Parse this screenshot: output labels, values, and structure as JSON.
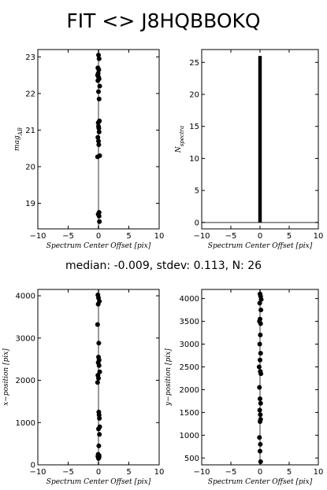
{
  "title": "FIT <> J8HQBBOKQ",
  "summary": "median: -0.009, stdev: 0.113, N: 26",
  "chart_data": [
    {
      "type": "scatter",
      "xlabel": "Spectrum Center Offset [pix]",
      "ylabel": "mag_AB",
      "xlim": [
        -10,
        10
      ],
      "ylim": [
        18.3,
        23.2
      ],
      "xticks": [
        -10,
        -5,
        0,
        5,
        10
      ],
      "xtick_labels": [
        "−10",
        "−5",
        "0",
        "5",
        "10"
      ],
      "yticks": [
        19,
        20,
        21,
        22,
        23
      ],
      "ytick_labels": [
        "19",
        "20",
        "21",
        "22",
        "23"
      ],
      "vline": 0,
      "x": [
        0.0,
        0.1,
        -0.1,
        0.05,
        -0.05,
        -0.15,
        0.0,
        0.1,
        -0.1,
        0.2,
        0.0,
        0.1,
        -0.05,
        0.15,
        0.0,
        0.05,
        0.1,
        -0.1,
        0.0,
        0.05,
        0.2,
        -0.15,
        0.1,
        -0.05,
        0.1,
        0.15
      ],
      "y": [
        23.05,
        22.95,
        22.7,
        22.65,
        22.55,
        22.5,
        22.45,
        22.4,
        22.35,
        22.2,
        22.05,
        21.85,
        21.2,
        21.25,
        21.1,
        21.05,
        20.95,
        20.8,
        20.7,
        20.6,
        20.3,
        20.27,
        18.75,
        18.7,
        18.65,
        18.5
      ]
    },
    {
      "type": "bar",
      "xlabel": "Spectrum Center Offset [pix]",
      "ylabel": "N_spectra",
      "xlim": [
        -10,
        10
      ],
      "ylim": [
        -1,
        27
      ],
      "xticks": [
        -10,
        -5,
        0,
        5,
        10
      ],
      "xtick_labels": [
        "−10",
        "−5",
        "0",
        "5",
        "10"
      ],
      "yticks": [
        0,
        5,
        10,
        15,
        20,
        25
      ],
      "ytick_labels": [
        "0",
        "5",
        "10",
        "15",
        "20",
        "25"
      ],
      "bar_x": [
        -0.3,
        0.3
      ],
      "bar_value": 26,
      "hline": 0
    },
    {
      "type": "scatter",
      "xlabel": "Spectrum Center Offset [pix]",
      "ylabel": "x−position [pix]",
      "xlim": [
        -10,
        10
      ],
      "ylim": [
        0,
        4150
      ],
      "xticks": [
        -10,
        -5,
        0,
        5,
        10
      ],
      "xtick_labels": [
        "−10",
        "−5",
        "0",
        "5",
        "10"
      ],
      "yticks": [
        0,
        1000,
        2000,
        3000,
        4000
      ],
      "ytick_labels": [
        "0",
        "1000",
        "2000",
        "3000",
        "4000"
      ],
      "vline": 0,
      "x": [
        -0.1,
        0.0,
        0.15,
        -0.05,
        -0.15,
        0.05,
        0.0,
        0.1,
        -0.05,
        0.1,
        0.2,
        -0.1,
        0.0,
        -0.15,
        0.05,
        0.1,
        0.15,
        0.2,
        0.0,
        0.15,
        0.05,
        -0.05,
        -0.1,
        0.0,
        0.1,
        0.1
      ],
      "y": [
        4020,
        3950,
        3870,
        3800,
        3320,
        2880,
        2550,
        2480,
        2420,
        2350,
        2200,
        2120,
        2050,
        1950,
        1250,
        1180,
        1100,
        900,
        850,
        720,
        450,
        250,
        200,
        150,
        180,
        220
      ]
    },
    {
      "type": "scatter",
      "xlabel": "Spectrum Center Offset [pix]",
      "ylabel": "y−position [pix]",
      "xlim": [
        -10,
        10
      ],
      "ylim": [
        350,
        4200
      ],
      "xticks": [
        -10,
        -5,
        0,
        5,
        10
      ],
      "xtick_labels": [
        "−10",
        "−5",
        "0",
        "5",
        "10"
      ],
      "yticks": [
        500,
        1000,
        1500,
        2000,
        2500,
        3000,
        3500,
        4000
      ],
      "ytick_labels": [
        "500",
        "1000",
        "1500",
        "2000",
        "2500",
        "3000",
        "3500",
        "4000"
      ],
      "vline": 0,
      "x": [
        0.0,
        0.1,
        0.2,
        -0.05,
        0.15,
        0.0,
        -0.1,
        0.1,
        0.05,
        -0.05,
        0.1,
        0.0,
        -0.15,
        0.05,
        0.15,
        -0.1,
        0.0,
        0.1,
        -0.05,
        0.05,
        0.1,
        0.0,
        -0.1,
        0.05,
        0.0,
        0.1
      ],
      "y": [
        4100,
        4050,
        3980,
        3900,
        3750,
        3550,
        3500,
        3450,
        3200,
        3000,
        2800,
        2650,
        2500,
        2400,
        2350,
        2050,
        1800,
        1700,
        1550,
        1450,
        1350,
        1300,
        950,
        800,
        650,
        420
      ]
    }
  ]
}
